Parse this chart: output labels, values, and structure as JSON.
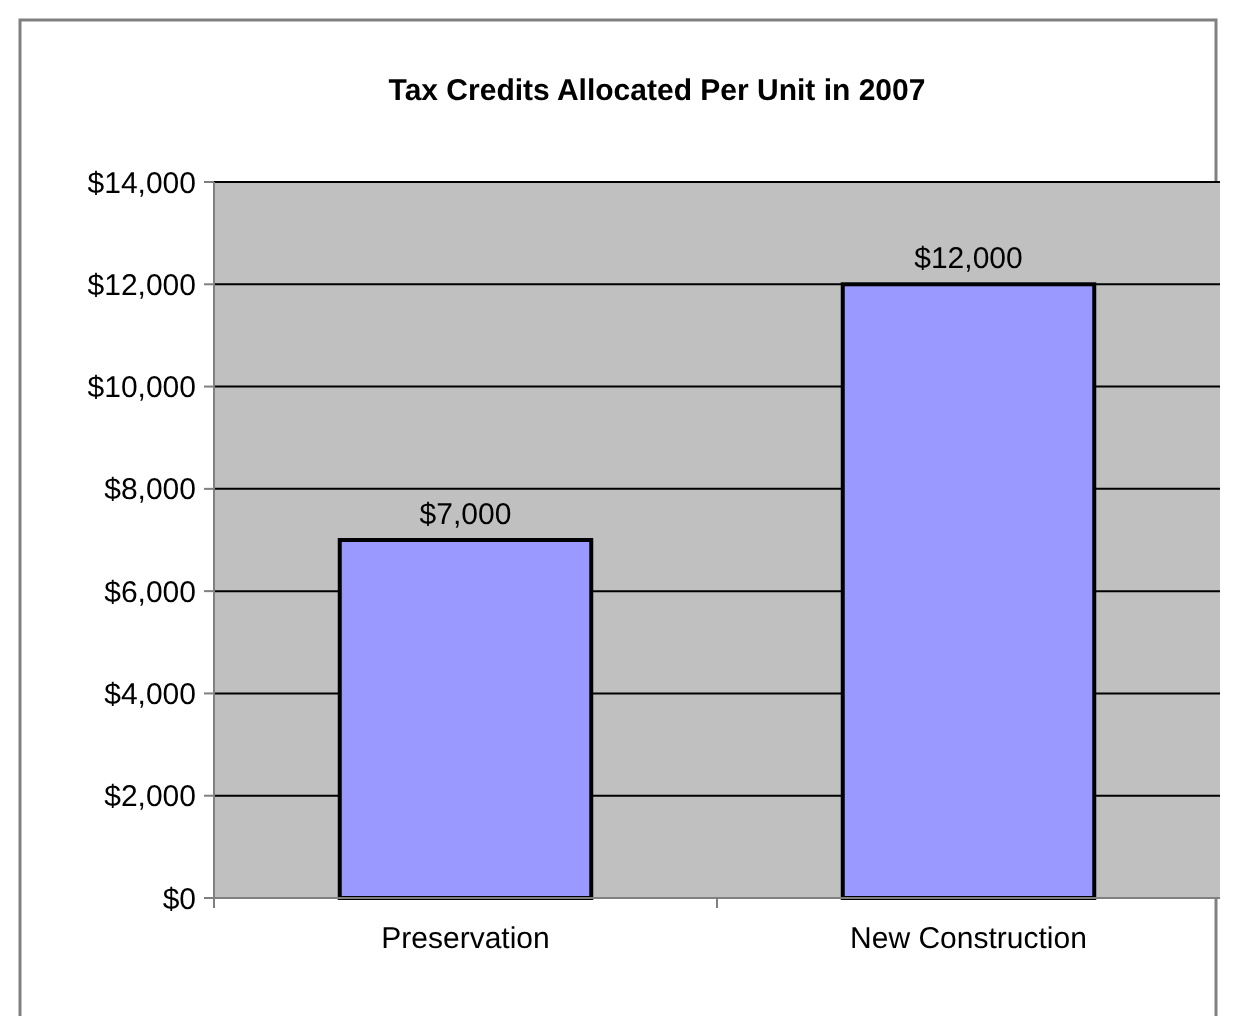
{
  "chart_data": {
    "type": "bar",
    "title": "Tax Credits Allocated Per Unit in 2007",
    "categories": [
      "Preservation",
      "New Construction"
    ],
    "values": [
      7000,
      12000
    ],
    "color": "#9999ff",
    "value_labels": [
      "$7,000",
      "$12,000"
    ],
    "ylim": [
      0,
      14000
    ],
    "yticks": [
      {
        "value": 0,
        "label": "$0"
      },
      {
        "value": 2000,
        "label": "$2,000"
      },
      {
        "value": 4000,
        "label": "$4,000"
      },
      {
        "value": 6000,
        "label": "$6,000"
      },
      {
        "value": 8000,
        "label": "$8,000"
      },
      {
        "value": 10000,
        "label": "$10,000"
      },
      {
        "value": 12000,
        "label": "$12,000"
      },
      {
        "value": 14000,
        "label": "$14,000"
      }
    ],
    "grid": "y"
  }
}
